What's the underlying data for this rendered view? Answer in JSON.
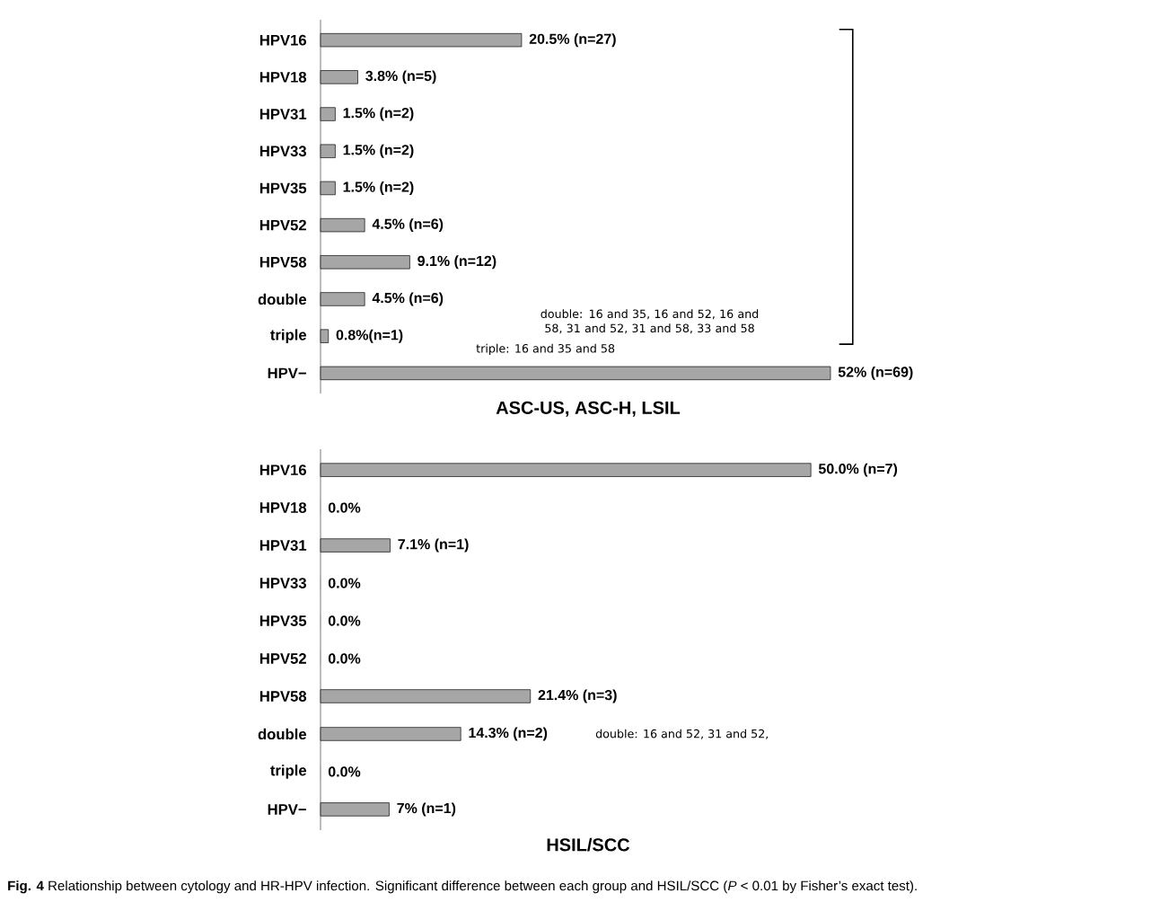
{
  "chart_data": [
    {
      "type": "bar",
      "orientation": "horizontal",
      "title": "ASC-US, ASC-H, LSIL",
      "color": "#a6a6a6",
      "categories": [
        "HPV16",
        "HPV18",
        "HPV31",
        "HPV33",
        "HPV35",
        "HPV52",
        "HPV58",
        "double",
        "triple",
        "HPV−"
      ],
      "values": [
        20.5,
        3.8,
        1.5,
        1.5,
        1.5,
        4.5,
        9.1,
        4.5,
        0.8,
        52
      ],
      "value_labels": [
        "20.5% (n=27)",
        "3.8% (n=5)",
        "1.5% (n=2)",
        "1.5% (n=2)",
        "1.5% (n=2)",
        "4.5% (n=6)",
        "9.1% (n=12)",
        "4.5% (n=6)",
        "0.8%(n=1)",
        "52% (n=69)"
      ],
      "annotations": [
        "double: 16 and 35, 16 and 52, 16 and 58, 31 and 52, 31 and 58, 33 and 58",
        "triple: 16 and 35 and 58"
      ]
    },
    {
      "type": "bar",
      "orientation": "horizontal",
      "title": "HSIL/SCC",
      "color": "#a6a6a6",
      "categories": [
        "HPV16",
        "HPV18",
        "HPV31",
        "HPV33",
        "HPV35",
        "HPV52",
        "HPV58",
        "double",
        "triple",
        "HPV−"
      ],
      "values": [
        50.0,
        0,
        7.1,
        0,
        0,
        0,
        21.4,
        14.3,
        0,
        7
      ],
      "value_labels": [
        "50.0% (n=7)",
        "0.0%",
        "7.1% (n=1)",
        "0.0%",
        "0.0%",
        "0.0%",
        "21.4% (n=3)",
        "14.3% (n=2)",
        "0.0%",
        "7% (n=1)"
      ],
      "annotations": [
        "double: 16 and 52, 31 and 52,",
        "**Fig. 4** Relationship between cytology and HR-HPV infection. Significant difference between each group and HSIL/SCC (*P* < 0.01 by Fisher’s exact test)."
      ]
    }
  ]
}
